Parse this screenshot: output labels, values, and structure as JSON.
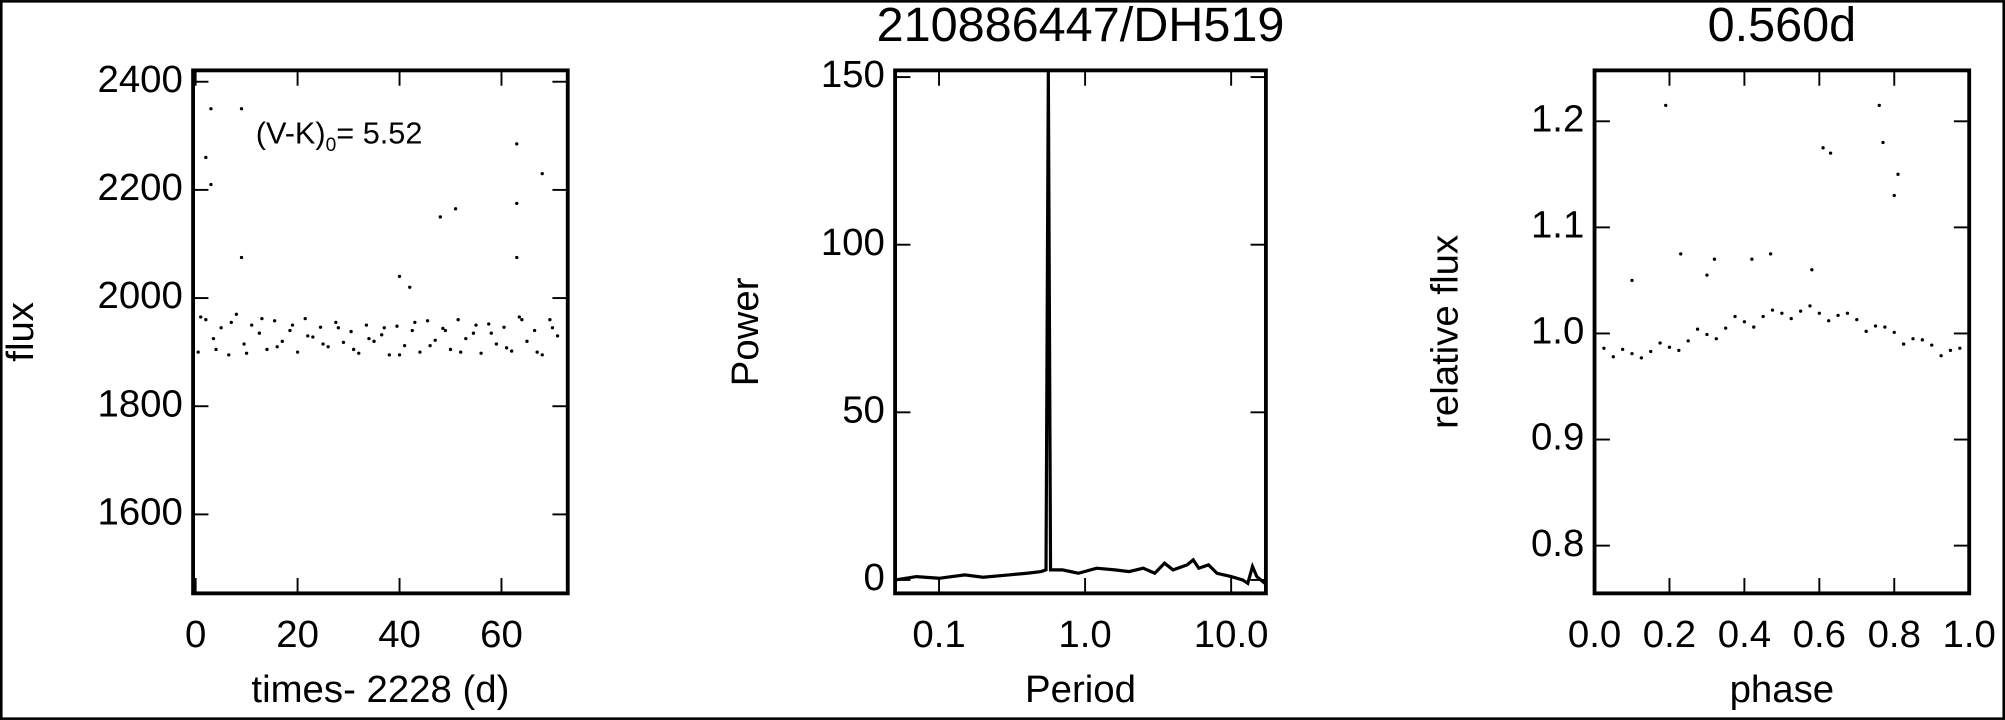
{
  "chart_data": [
    {
      "type": "scatter",
      "xlabel": "times- 2228 (d)",
      "ylabel": "flux",
      "color": "#000000",
      "annotation": {
        "text": "(V-K)",
        "subscript": "0",
        "value_text": "= 5.52"
      },
      "xlim": [
        -0.5,
        73
      ],
      "ylim": [
        1454,
        2421
      ],
      "xticks": [
        0,
        20,
        40,
        60
      ],
      "yticks": [
        1600,
        1800,
        2000,
        2200,
        2400
      ],
      "x": [
        0.5,
        2,
        3.5,
        5,
        6.5,
        8,
        9.5,
        11,
        12.5,
        14,
        15.5,
        17,
        18.5,
        20,
        21.5,
        23,
        24.5,
        26,
        27.5,
        29,
        30.5,
        32,
        33.5,
        35,
        36.5,
        38,
        39.5,
        41,
        42.5,
        44,
        45.5,
        47,
        48.5,
        50,
        51.5,
        53,
        54.5,
        56,
        57.5,
        59,
        60.5,
        62,
        63.5,
        65,
        66.5,
        68,
        69.5,
        71,
        1,
        4,
        7,
        10,
        13,
        16,
        19,
        22,
        25,
        28,
        31,
        34,
        37,
        40,
        43,
        46,
        49,
        52,
        55,
        58,
        61,
        64,
        67,
        70,
        3,
        9,
        2,
        3,
        9,
        48,
        51,
        63,
        63,
        63,
        68,
        40,
        42
      ],
      "values": [
        1900,
        1960,
        1925,
        1945,
        1895,
        1970,
        1915,
        1950,
        1935,
        1905,
        1958,
        1920,
        1940,
        1900,
        1962,
        1928,
        1946,
        1910,
        1955,
        1918,
        1938,
        1898,
        1950,
        1920,
        1932,
        1895,
        1948,
        1912,
        1940,
        1900,
        1958,
        1922,
        1944,
        1905,
        1960,
        1925,
        1935,
        1898,
        1952,
        1915,
        1946,
        1902,
        1965,
        1920,
        1940,
        1895,
        1960,
        1930,
        1965,
        1905,
        1955,
        1898,
        1962,
        1910,
        1950,
        1930,
        1915,
        1945,
        1905,
        1925,
        1945,
        1895,
        1955,
        1912,
        1940,
        1900,
        1950,
        1935,
        1908,
        1960,
        1900,
        1945,
        2350,
        2350,
        2260,
        2210,
        2075,
        2150,
        2165,
        2285,
        2175,
        2075,
        2230,
        2040,
        2020
      ]
    },
    {
      "type": "line",
      "title": "210886447/DH519",
      "xlabel": "Period",
      "ylabel": "Power",
      "color": "#000000",
      "xlog": true,
      "xlim": [
        0.05,
        17.3
      ],
      "ylim": [
        -4,
        152
      ],
      "xticks": [
        0.1,
        {
          "value": 1,
          "label": "1.0"
        },
        {
          "value": 10,
          "label": "10.0"
        }
      ],
      "yticks": [
        0,
        50,
        100,
        150
      ],
      "x": [
        0.05,
        0.07,
        0.1,
        0.15,
        0.2,
        0.3,
        0.4,
        0.5,
        0.54,
        0.56,
        0.58,
        0.7,
        0.9,
        1.2,
        1.6,
        2,
        2.5,
        3,
        3.5,
        4,
        5,
        5.5,
        6,
        7,
        8,
        10,
        12,
        13,
        14,
        15,
        17
      ],
      "values": [
        0,
        1,
        0.5,
        1.5,
        0.8,
        1.5,
        2,
        2.5,
        3,
        152,
        3,
        3,
        2,
        3.5,
        3,
        2.5,
        3.5,
        2,
        5,
        3,
        4.5,
        6,
        3.5,
        4.5,
        2,
        1,
        0,
        -1,
        4,
        1,
        -1
      ]
    },
    {
      "type": "scatter",
      "title": "0.560d",
      "xlabel": "phase",
      "ylabel": "relative flux",
      "color": "#000000",
      "xlim": [
        0,
        1
      ],
      "ylim": [
        0.755,
        1.248
      ],
      "xticks": [
        {
          "value": 0,
          "label": "0.0"
        },
        0.2,
        0.4,
        0.6,
        0.8,
        {
          "value": 1,
          "label": "1.0"
        }
      ],
      "yticks": [
        0.8,
        0.9,
        {
          "value": 1,
          "label": "1.0"
        },
        1.1,
        1.2
      ],
      "x": [
        0,
        0.05,
        0.1,
        0.15,
        0.2,
        0.25,
        0.3,
        0.35,
        0.4,
        0.45,
        0.5,
        0.55,
        0.6,
        0.65,
        0.7,
        0.75,
        0.8,
        0.85,
        0.9,
        0.95,
        1,
        0.025,
        0.075,
        0.125,
        0.175,
        0.225,
        0.275,
        0.325,
        0.375,
        0.425,
        0.475,
        0.525,
        0.575,
        0.625,
        0.675,
        0.725,
        0.775,
        0.825,
        0.875,
        0.925,
        0.975,
        0.19,
        0.76,
        0.77,
        0.61,
        0.63,
        0.81,
        0.8,
        0.23,
        0.32,
        0.42,
        0.47,
        0.1,
        0.58,
        0.3
      ],
      "values": [
        0.981,
        0.978,
        0.981,
        0.983,
        0.987,
        0.993,
        0.999,
        1.005,
        1.011,
        1.016,
        1.019,
        1.021,
        1.019,
        1.017,
        1.013,
        1.007,
        1.001,
        0.995,
        0.989,
        0.984,
        0.981,
        0.986,
        0.985,
        0.977,
        0.991,
        0.984,
        1.004,
        0.995,
        1.016,
        1.006,
        1.022,
        1.014,
        1.026,
        1.012,
        1.019,
        1.002,
        1.006,
        0.99,
        0.994,
        0.979,
        0.986,
        1.215,
        1.215,
        1.18,
        1.175,
        1.17,
        1.15,
        1.13,
        1.075,
        1.07,
        1.07,
        1.075,
        1.05,
        1.06,
        1.055
      ]
    }
  ]
}
